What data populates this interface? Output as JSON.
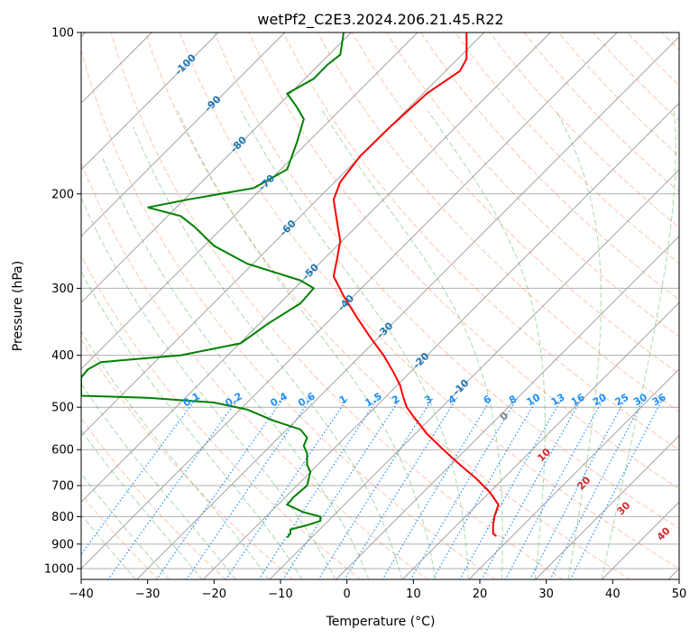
{
  "chart_data": {
    "type": "line",
    "title": "wetPf2_C2E3.2024.206.21.45.R22",
    "xlabel": "Temperature (°C)",
    "ylabel": "Pressure (hPa)",
    "xlim": [
      -40,
      50
    ],
    "ylim": [
      1050,
      100
    ],
    "y_scale": "log",
    "grid": true,
    "x_ticks": [
      -40,
      -30,
      -20,
      -10,
      0,
      10,
      20,
      30,
      40,
      50
    ],
    "x_tick_labels": [
      "−40",
      "−30",
      "−20",
      "−10",
      "0",
      "10",
      "20",
      "30",
      "40",
      "50"
    ],
    "y_ticks": [
      100,
      200,
      300,
      400,
      500,
      600,
      700,
      800,
      900,
      1000
    ],
    "y_tick_labels": [
      "100",
      "200",
      "300",
      "400",
      "500",
      "600",
      "700",
      "800",
      "900",
      "1000"
    ],
    "colors": {
      "temperature": "#ff0000",
      "dewpoint": "#008000",
      "isotherm": "#999999",
      "isotherm_label": "#1f77b4",
      "dry_adiabat": "#ff7f50",
      "moist_adiabat": "#2ca02c",
      "mixing_ratio": "#1e90ff",
      "isohume_label": "#d62728",
      "freezing_label": "#808080"
    },
    "series": [
      {
        "points": [
          [
            22.5,
            870
          ],
          [
            22.0,
            860
          ],
          [
            22.0,
            830
          ],
          [
            22.2,
            800
          ],
          [
            22.8,
            760
          ],
          [
            21.5,
            720
          ],
          [
            19.5,
            680
          ],
          [
            17.0,
            640
          ],
          [
            14.5,
            600
          ],
          [
            12.0,
            560
          ],
          [
            10.0,
            520
          ],
          [
            9.0,
            500
          ],
          [
            8.5,
            480
          ],
          [
            8.0,
            455
          ],
          [
            7.0,
            430
          ],
          [
            5.5,
            400
          ],
          [
            3.5,
            370
          ],
          [
            1.5,
            340
          ],
          [
            -0.5,
            310
          ],
          [
            -2.0,
            285
          ],
          [
            -1.5,
            265
          ],
          [
            -1.0,
            245
          ],
          [
            -1.5,
            225
          ],
          [
            -2.0,
            205
          ],
          [
            -1.0,
            190
          ],
          [
            2.0,
            170
          ],
          [
            6.5,
            150
          ],
          [
            12.0,
            130
          ],
          [
            17.0,
            118
          ],
          [
            18.0,
            112
          ],
          [
            18.0,
            105
          ],
          [
            18.0,
            100
          ]
        ]
      },
      {
        "points": [
          [
            -9.0,
            875
          ],
          [
            -8.5,
            860
          ],
          [
            -8.5,
            845
          ],
          [
            -6.0,
            830
          ],
          [
            -4.0,
            815
          ],
          [
            -4.0,
            800
          ],
          [
            -6.5,
            785
          ],
          [
            -9.0,
            760
          ],
          [
            -8.0,
            735
          ],
          [
            -6.0,
            700
          ],
          [
            -5.5,
            660
          ],
          [
            -6.0,
            640
          ],
          [
            -6.0,
            610
          ],
          [
            -6.5,
            590
          ],
          [
            -6.0,
            570
          ],
          [
            -7.0,
            550
          ],
          [
            -11.0,
            530
          ],
          [
            -15.0,
            505
          ],
          [
            -20.0,
            490
          ],
          [
            -30.0,
            480
          ],
          [
            -40.0,
            476
          ],
          [
            -40.0,
            440
          ],
          [
            -39.0,
            425
          ],
          [
            -37.0,
            412
          ],
          [
            -25.0,
            400
          ],
          [
            -16.0,
            380
          ],
          [
            -12.0,
            350
          ],
          [
            -7.0,
            320
          ],
          [
            -5.0,
            300
          ],
          [
            -7.0,
            290
          ],
          [
            -15.0,
            270
          ],
          [
            -20.0,
            250
          ],
          [
            -23.0,
            230
          ],
          [
            -25.0,
            220
          ],
          [
            -30.0,
            212
          ],
          [
            -24.0,
            205
          ],
          [
            -14.0,
            195
          ],
          [
            -9.0,
            180
          ],
          [
            -7.5,
            160
          ],
          [
            -6.5,
            145
          ],
          [
            -7.5,
            138
          ],
          [
            -9.0,
            130
          ],
          [
            -5.0,
            122
          ],
          [
            -3.0,
            115
          ],
          [
            -1.0,
            110
          ],
          [
            -0.5,
            100
          ]
        ]
      }
    ],
    "isotherm_labels": [
      "-100",
      "-90",
      "-80",
      "-70",
      "-60",
      "-50",
      "-40",
      "-30",
      "-20",
      "-10"
    ],
    "mixing_ratio_labels": [
      "0.1",
      "0.2",
      "0.4",
      "0.6",
      "1",
      "1.5",
      "2",
      "3",
      "4",
      "6",
      "8",
      "10",
      "13",
      "16",
      "20",
      "25",
      "30",
      "36"
    ],
    "isohume_labels": [
      "0",
      "10",
      "20",
      "30",
      "40"
    ]
  }
}
